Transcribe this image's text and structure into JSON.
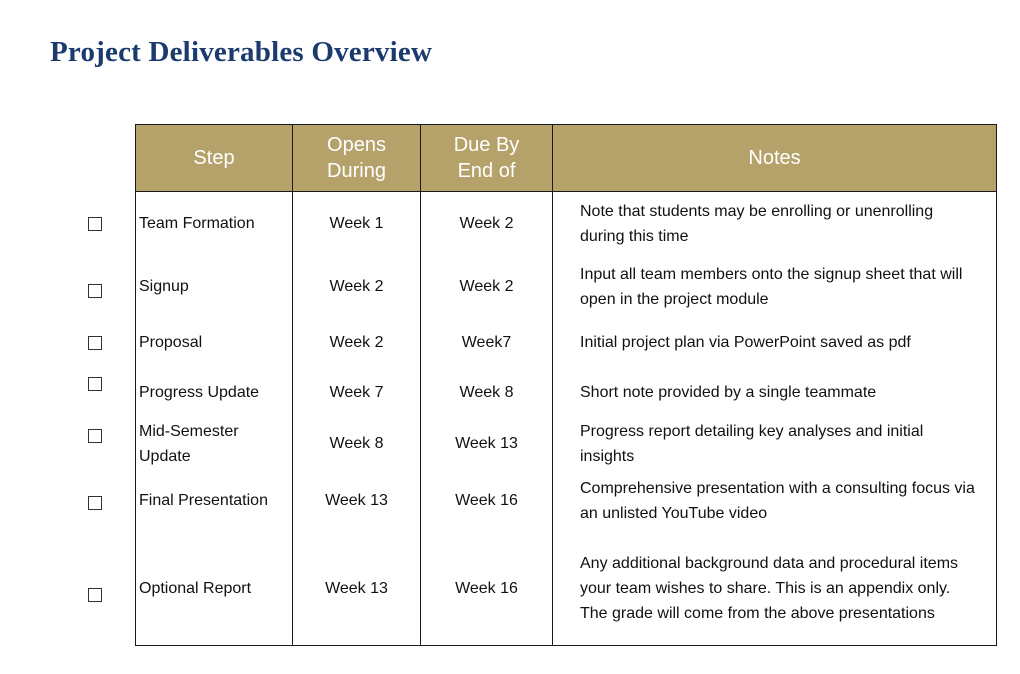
{
  "page": {
    "title": "Project Deliverables Overview"
  },
  "table": {
    "headers": {
      "step": "Step",
      "opens_line1": "Opens",
      "opens_line2": "During",
      "due_line1": "Due By",
      "due_line2": "End of",
      "notes": "Notes"
    },
    "header_color": "#b5a26a",
    "rows": [
      {
        "step": "Team Formation",
        "opens": "Week 1",
        "due": "Week 2",
        "notes": "Note that students may be enrolling or unenrolling during this time",
        "checked": false
      },
      {
        "step": "Signup",
        "opens": "Week 2",
        "due": "Week 2",
        "notes": "Input all team members onto the signup sheet that will open in the project module",
        "checked": false
      },
      {
        "step": "Proposal",
        "opens": "Week 2",
        "due": "Week7",
        "notes": "Initial project plan via PowerPoint saved as pdf",
        "checked": false
      },
      {
        "step": "Progress Update",
        "opens": "Week 7",
        "due": "Week 8",
        "notes": "Short note provided by a single teammate",
        "checked": false
      },
      {
        "step": "Mid-Semester Update",
        "opens": "Week 8",
        "due": "Week 13",
        "notes": "Progress report detailing key analyses and initial insights",
        "checked": false
      },
      {
        "step": "Final Presentation",
        "opens": "Week 13",
        "due": "Week 16",
        "notes": "Comprehensive presentation with a consulting focus via an unlisted YouTube video",
        "checked": false
      },
      {
        "step": "Optional Report",
        "opens": "Week 13",
        "due": "Week 16",
        "notes": "Any additional background data and procedural items your team wishes to share.  This is an appendix only.  The grade will come from the above presentations",
        "checked": false
      }
    ]
  }
}
